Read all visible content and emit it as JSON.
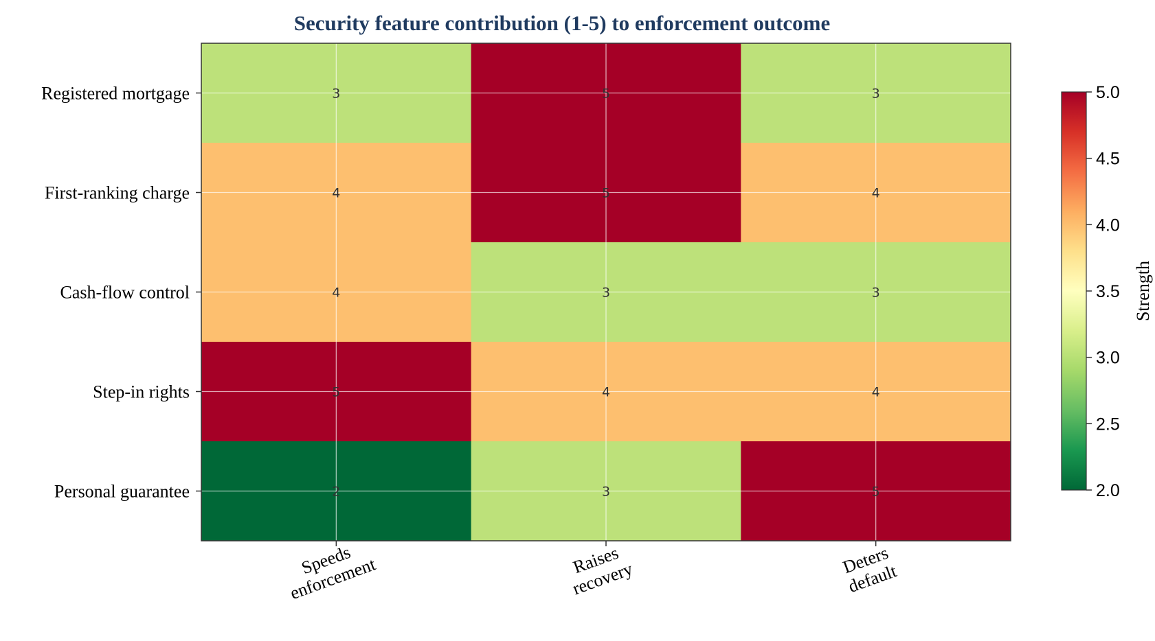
{
  "chart_data": {
    "type": "heatmap",
    "title": "Security feature contribution (1-5) to enforcement outcome",
    "rows": [
      "Registered mortgage",
      "First-ranking charge",
      "Cash-flow control",
      "Step-in rights",
      "Personal guarantee"
    ],
    "columns": [
      "Speeds enforcement",
      "Raises recovery",
      "Deters default"
    ],
    "columns_display": [
      [
        "Speeds",
        "enforcement"
      ],
      [
        "Raises",
        "recovery"
      ],
      [
        "Deters",
        "default"
      ]
    ],
    "values": [
      [
        3,
        5,
        3
      ],
      [
        4,
        5,
        4
      ],
      [
        4,
        3,
        3
      ],
      [
        5,
        4,
        4
      ],
      [
        2,
        3,
        5
      ]
    ],
    "colorbar": {
      "label": "Strength",
      "range": [
        2.0,
        5.0
      ],
      "ticks": [
        "2.0",
        "2.5",
        "3.0",
        "3.5",
        "4.0",
        "4.5",
        "5.0"
      ],
      "colormap": "RdYlGn_r"
    },
    "grid": true,
    "colors": {
      "2": "#006837",
      "3": "#bde17a",
      "4": "#fdbf6f",
      "5": "#a50026"
    }
  }
}
